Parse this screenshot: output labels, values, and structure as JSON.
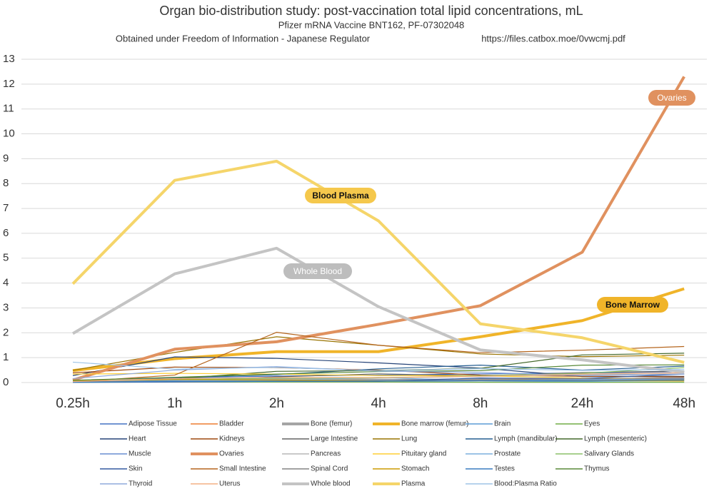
{
  "chart_data": {
    "type": "line",
    "title": "Organ bio-distribution study: post-vaccination total lipid concentrations, mL",
    "subtitle": "Pfizer mRNA Vaccine BNT162, PF-07302048",
    "source": "Obtained under Freedom of Information - Japanese Regulator",
    "url": "https://files.catbox.moe/0vwcmj.pdf",
    "categories": [
      "0.25h",
      "1h",
      "2h",
      "4h",
      "8h",
      "24h",
      "48h"
    ],
    "ylim": [
      0,
      13
    ],
    "yticks": [
      0,
      1,
      2,
      3,
      4,
      5,
      6,
      7,
      8,
      9,
      10,
      11,
      12,
      13
    ],
    "grid": true,
    "annotations": [
      "Ovaries",
      "Blood Plasma",
      "Whole Blood",
      "Bone Marrow"
    ],
    "series": [
      {
        "name": "Adipose Tissue",
        "color": "#4472c4",
        "values": [
          0.06,
          0.19,
          0.26,
          0.3,
          0.35,
          0.38,
          0.44
        ]
      },
      {
        "name": "Bladder",
        "color": "#ed7d31",
        "values": [
          0.04,
          0.06,
          0.05,
          0.07,
          0.13,
          0.15,
          0.18
        ]
      },
      {
        "name": "Bone (femur)",
        "color": "#a5a5a5",
        "values": [
          0.05,
          0.09,
          0.14,
          0.09,
          0.1,
          0.08,
          0.18
        ]
      },
      {
        "name": "Bone marrow (femur)",
        "color": "#f0b429",
        "values": [
          0.48,
          0.96,
          1.24,
          1.24,
          1.84,
          2.49,
          3.77
        ]
      },
      {
        "name": "Brain",
        "color": "#5b9bd5",
        "values": [
          0.05,
          0.04,
          0.05,
          0.05,
          0.06,
          0.05,
          0.07
        ]
      },
      {
        "name": "Eyes",
        "color": "#70ad47",
        "values": [
          0.01,
          0.02,
          0.02,
          0.02,
          0.01,
          0.01,
          0.01
        ]
      },
      {
        "name": "Heart",
        "color": "#264478",
        "values": [
          0.28,
          1.03,
          0.97,
          0.79,
          0.58,
          0.24,
          0.25
        ]
      },
      {
        "name": "Kidneys",
        "color": "#9e480e",
        "values": [
          0.39,
          0.62,
          0.6,
          0.5,
          0.3,
          0.25,
          0.23
        ]
      },
      {
        "name": "Large Intestine",
        "color": "#636363",
        "values": [
          0.01,
          0.07,
          0.23,
          0.35,
          0.27,
          0.4,
          0.46
        ]
      },
      {
        "name": "Lung",
        "color": "#997300",
        "values": [
          0.49,
          1.21,
          1.84,
          1.5,
          1.15,
          1.04,
          1.1
        ]
      },
      {
        "name": "Lymph (mandibular)",
        "color": "#255e91",
        "values": [
          0.06,
          0.2,
          0.32,
          0.55,
          0.7,
          0.5,
          0.66
        ]
      },
      {
        "name": "Lymph (mesenteric)",
        "color": "#43682b",
        "values": [
          0.05,
          0.15,
          0.45,
          0.48,
          0.57,
          1.11,
          1.18
        ]
      },
      {
        "name": "Muscle",
        "color": "#698ed0",
        "values": [
          0.02,
          0.05,
          0.07,
          0.08,
          0.1,
          0.13,
          0.16
        ]
      },
      {
        "name": "Ovaries",
        "color": "#e0915f",
        "values": [
          0.1,
          1.34,
          1.64,
          2.34,
          3.09,
          5.24,
          12.3
        ]
      },
      {
        "name": "Pancreas",
        "color": "#b7b7b7",
        "values": [
          0.08,
          0.15,
          0.1,
          0.18,
          0.24,
          0.31,
          0.35
        ]
      },
      {
        "name": "Pituitary gland",
        "color": "#ffcd33",
        "values": [
          0.34,
          0.37,
          0.34,
          0.28,
          0.27,
          0.18,
          0.13
        ]
      },
      {
        "name": "Prostate",
        "color": "#7cafdd",
        "values": [
          0.06,
          0.09,
          0.07,
          0.21,
          0.06,
          0.15,
          0.1
        ]
      },
      {
        "name": "Salivary Glands",
        "color": "#8cc168",
        "values": [
          0.07,
          0.12,
          0.17,
          0.19,
          0.27,
          0.37,
          0.6
        ]
      },
      {
        "name": "Skin",
        "color": "#335aa1",
        "values": [
          0.01,
          0.02,
          0.05,
          0.05,
          0.18,
          0.16,
          0.34
        ]
      },
      {
        "name": "Small Intestine",
        "color": "#b5651d",
        "values": [
          0.03,
          0.3,
          2.02,
          1.5,
          1.2,
          1.3,
          1.45
        ]
      },
      {
        "name": "Spinal Cord",
        "color": "#848484",
        "values": [
          0.04,
          0.03,
          0.06,
          0.06,
          0.1,
          0.16,
          0.14
        ]
      },
      {
        "name": "Stomach",
        "color": "#cc9a00",
        "values": [
          0.06,
          0.12,
          0.1,
          0.07,
          0.07,
          0.08,
          0.06
        ]
      },
      {
        "name": "Testes",
        "color": "#3a7dc0",
        "values": [
          0.01,
          0.04,
          0.05,
          0.06,
          0.07,
          0.08,
          0.1
        ]
      },
      {
        "name": "Thymus",
        "color": "#5a8a39",
        "values": [
          0.09,
          0.21,
          0.34,
          0.44,
          0.48,
          0.7,
          0.71
        ]
      },
      {
        "name": "Thyroid",
        "color": "#8faadc",
        "values": [
          0.16,
          0.5,
          0.64,
          0.46,
          0.41,
          0.28,
          0.34
        ]
      },
      {
        "name": "Uterus",
        "color": "#f4b183",
        "values": [
          0.04,
          0.16,
          0.2,
          0.2,
          0.25,
          0.34,
          0.39
        ]
      },
      {
        "name": "Whole blood",
        "color": "#c4c4c4",
        "values": [
          1.97,
          4.37,
          5.4,
          3.05,
          1.31,
          0.91,
          0.42
        ]
      },
      {
        "name": "Plasma",
        "color": "#f5d56a",
        "values": [
          3.97,
          8.13,
          8.9,
          6.5,
          2.36,
          1.8,
          0.81
        ]
      },
      {
        "name": "Blood:Plasma Ratio",
        "color": "#9dc3e6",
        "values": [
          0.82,
          0.54,
          0.61,
          0.47,
          0.56,
          0.49,
          0.52
        ]
      }
    ]
  }
}
